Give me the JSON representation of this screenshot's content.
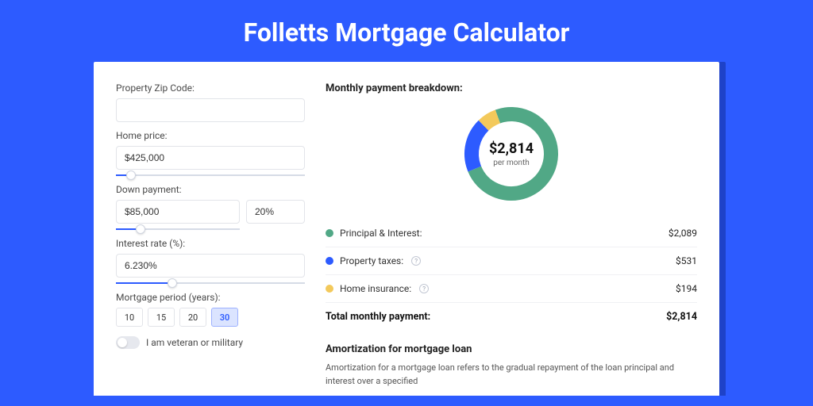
{
  "page": {
    "title": "Folletts Mortgage Calculator"
  },
  "background_color": "#2d5bff",
  "card_shadow_color": "#1e42c8",
  "form": {
    "zip": {
      "label": "Property Zip Code:",
      "value": ""
    },
    "price": {
      "label": "Home price:",
      "value": "$425,000",
      "slider_pct": 8
    },
    "down": {
      "label": "Down payment:",
      "amount": "$85,000",
      "pct": "20%",
      "slider_pct": 20
    },
    "rate": {
      "label": "Interest rate (%):",
      "value": "6.230%",
      "slider_pct": 30
    },
    "period": {
      "label": "Mortgage period (years):",
      "options": [
        "10",
        "15",
        "20",
        "30"
      ],
      "selected_index": 3
    },
    "veteran": {
      "label": "I am veteran or military",
      "checked": false
    }
  },
  "breakdown": {
    "title": "Monthly payment breakdown:",
    "center_amount": "$2,814",
    "center_sub": "per month",
    "donut": {
      "radius": 50,
      "stroke": 18,
      "rotate_deg": -110,
      "slices": [
        {
          "key": "pi",
          "color": "#51a886",
          "fraction": 0.742
        },
        {
          "key": "tax",
          "color": "#2d5bff",
          "fraction": 0.189
        },
        {
          "key": "ins",
          "color": "#f3c95b",
          "fraction": 0.069
        }
      ]
    },
    "items": [
      {
        "label": "Principal & Interest:",
        "value": "$2,089",
        "color": "#51a886",
        "info": false
      },
      {
        "label": "Property taxes:",
        "value": "$531",
        "color": "#2d5bff",
        "info": true
      },
      {
        "label": "Home insurance:",
        "value": "$194",
        "color": "#f3c95b",
        "info": true
      }
    ],
    "total_label": "Total monthly payment:",
    "total_value": "$2,814"
  },
  "amortization": {
    "title": "Amortization for mortgage loan",
    "text": "Amortization for a mortgage loan refers to the gradual repayment of the loan principal and interest over a specified"
  }
}
